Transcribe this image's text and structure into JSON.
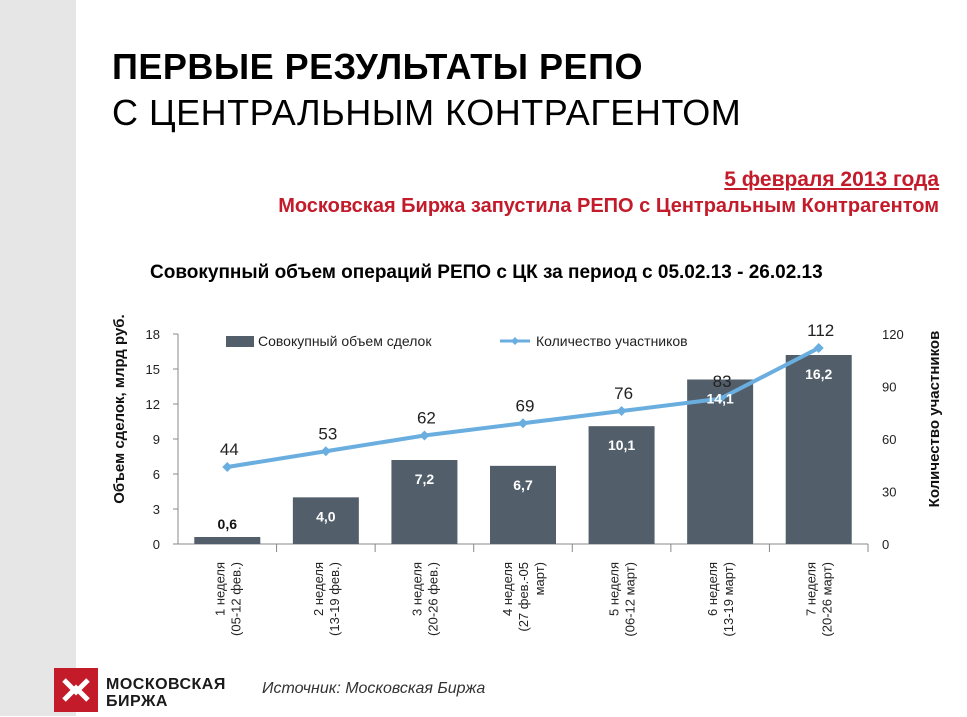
{
  "header": {
    "title_line1": "ПЕРВЫЕ РЕЗУЛЬТАТЫ РЕПО",
    "title_line2": "С ЦЕНТРАЛЬНЫМ КОНТРАГЕНТОМ",
    "date": "5 февраля 2013 года",
    "subtitle": "Московская Биржа запустила РЕПО с Центральным Контрагентом"
  },
  "colors": {
    "accent": "#c41b2b",
    "bar": "#525f6b",
    "line": "#6aaee0"
  },
  "chart_data": {
    "type": "bar",
    "title": "Совокупный объем операций РЕПО с ЦК за период с 05.02.13 - 26.02.13",
    "ylabel": "Объем сделок, млрд руб.",
    "y2label": "Количество участников",
    "ylim": [
      0,
      18
    ],
    "y2lim": [
      0,
      120
    ],
    "yticks": [
      "0",
      "3",
      "6",
      "9",
      "12",
      "15",
      "18"
    ],
    "y2ticks": [
      "0",
      "30",
      "60",
      "90",
      "120"
    ],
    "legend_position": "top",
    "categories": [
      [
        "1 неделя",
        "(05-12 фев.)"
      ],
      [
        "2 неделя",
        "(13-19 фев.)"
      ],
      [
        "3 неделя",
        "(20-26 фев.)"
      ],
      [
        "4 неделя",
        "(27 фев.-05",
        "март)"
      ],
      [
        "5 неделя",
        "(06-12 март)"
      ],
      [
        "6 неделя",
        "(13-19 март)"
      ],
      [
        "7 неделя",
        "(20-26 март)"
      ]
    ],
    "series": [
      {
        "name": "Совокупный объем сделок",
        "type": "bar",
        "axis": "left",
        "values": [
          0.6,
          4.0,
          7.2,
          6.7,
          10.1,
          14.1,
          16.2
        ],
        "labels": [
          "0,6",
          "4,0",
          "7,2",
          "6,7",
          "10,1",
          "14,1",
          "16,2"
        ]
      },
      {
        "name": "Количество участников",
        "type": "line",
        "axis": "right",
        "values": [
          44,
          53,
          62,
          69,
          76,
          83,
          112
        ],
        "labels": [
          "44",
          "53",
          "62",
          "69",
          "76",
          "83",
          "112"
        ]
      }
    ]
  },
  "footer": {
    "logo_line1": "МОСКОВСКАЯ",
    "logo_line2": "БИРЖА",
    "source": "Источник: Московская Биржа"
  }
}
